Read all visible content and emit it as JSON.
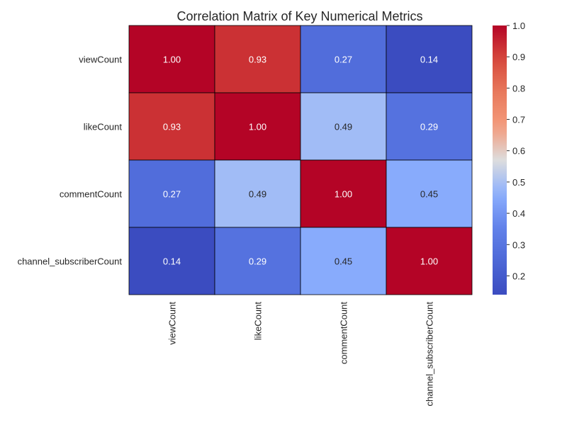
{
  "chart_data": {
    "type": "heatmap",
    "title": "Correlation Matrix of Key Numerical Metrics",
    "row_labels": [
      "viewCount",
      "likeCount",
      "commentCount",
      "channel_subscriberCount"
    ],
    "col_labels": [
      "viewCount",
      "likeCount",
      "commentCount",
      "channel_subscriberCount"
    ],
    "values": [
      [
        1.0,
        0.93,
        0.27,
        0.14
      ],
      [
        0.93,
        1.0,
        0.49,
        0.29
      ],
      [
        0.27,
        0.49,
        1.0,
        0.45
      ],
      [
        0.14,
        0.29,
        0.45,
        1.0
      ]
    ],
    "cell_labels": [
      [
        "1.00",
        "0.93",
        "0.27",
        "0.14"
      ],
      [
        "0.93",
        "1.00",
        "0.49",
        "0.29"
      ],
      [
        "0.27",
        "0.49",
        "1.00",
        "0.45"
      ],
      [
        "0.14",
        "0.29",
        "0.45",
        "1.00"
      ]
    ],
    "colormap": "coolwarm",
    "colorbar": {
      "range": [
        0.14,
        1.0
      ],
      "ticks": [
        0.2,
        0.3,
        0.4,
        0.5,
        0.6,
        0.7,
        0.8,
        0.9,
        1.0
      ],
      "tick_labels": [
        "0.2",
        "0.3",
        "0.4",
        "0.5",
        "0.6",
        "0.7",
        "0.8",
        "0.9",
        "1.0"
      ]
    },
    "grid": true,
    "cell_border_color": "#000000"
  }
}
